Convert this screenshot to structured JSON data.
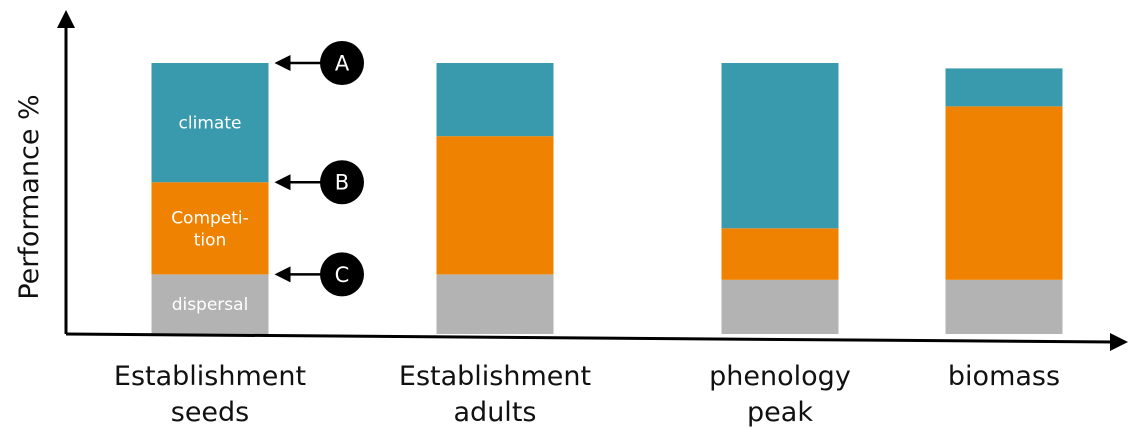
{
  "chart_data": {
    "type": "bar",
    "stacked": true,
    "ylabel": "Performance %",
    "xlabel": "",
    "ylim": [
      0,
      100
    ],
    "y_ticks_shown": false,
    "grid": false,
    "legend": "none",
    "categories": [
      [
        "Establishment",
        "seeds"
      ],
      [
        "Establishment",
        "adults"
      ],
      [
        "phenology",
        "peak"
      ],
      [
        "biomass"
      ]
    ],
    "series": [
      {
        "name": "dispersal",
        "color": "#b3b3b3",
        "values": [
          22,
          22,
          20,
          20
        ]
      },
      {
        "name": "Competition",
        "color": "#ef8200",
        "values": [
          34,
          51,
          19,
          64
        ]
      },
      {
        "name": "climate",
        "color": "#3a9aad",
        "values": [
          44,
          27,
          61,
          14
        ]
      }
    ],
    "segment_labels": [
      {
        "category_index": 0,
        "series_index": 0,
        "lines": [
          "dispersal"
        ]
      },
      {
        "category_index": 0,
        "series_index": 1,
        "lines": [
          "Competi-",
          "tion"
        ]
      },
      {
        "category_index": 0,
        "series_index": 2,
        "lines": [
          "climate"
        ]
      }
    ],
    "annotations": [
      {
        "letter": "A",
        "category_index": 0,
        "level": 100
      },
      {
        "letter": "B",
        "category_index": 0,
        "level": 56
      },
      {
        "letter": "C",
        "category_index": 0,
        "level": 22
      }
    ]
  }
}
